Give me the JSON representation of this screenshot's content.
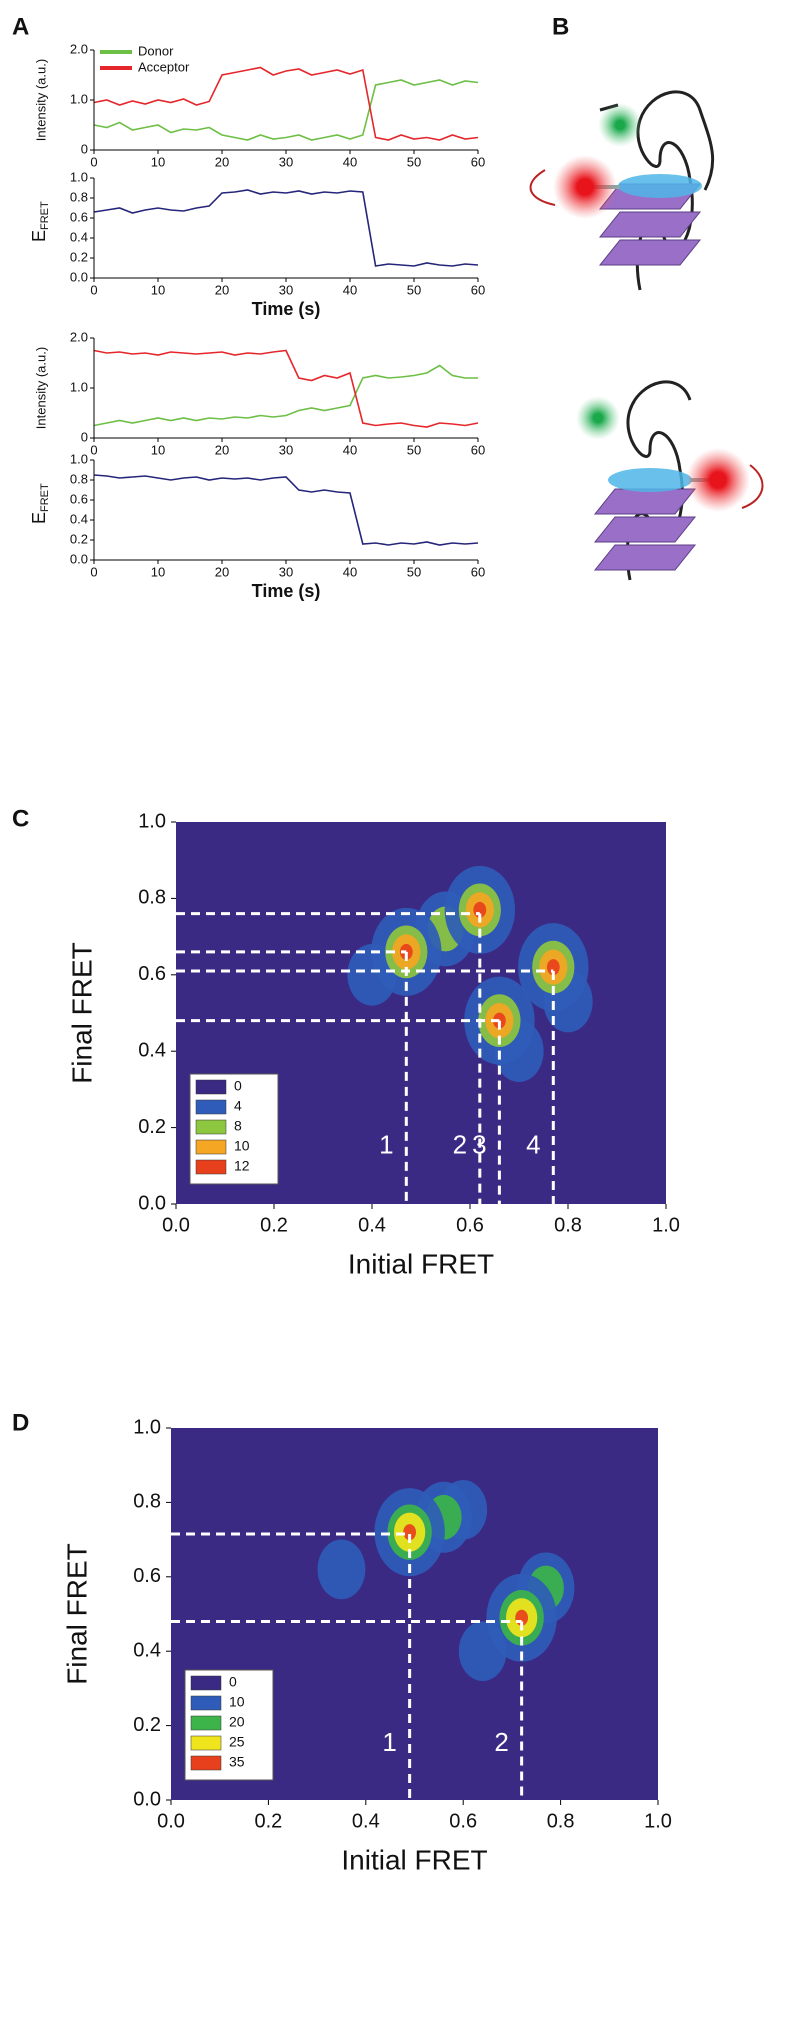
{
  "panel_labels": [
    "A",
    "B",
    "C",
    "D"
  ],
  "chart_data": [
    {
      "type": "line",
      "ylabel": "Intensity (a.u.)",
      "legend": "upper left",
      "x": [
        0,
        2,
        4,
        6,
        8,
        10,
        12,
        14,
        16,
        18,
        20,
        22,
        24,
        26,
        28,
        30,
        32,
        34,
        36,
        38,
        40,
        42,
        44,
        46,
        48,
        50,
        52,
        54,
        56,
        58,
        60
      ],
      "xlim": [
        0,
        60
      ],
      "xticks": [
        0,
        10,
        20,
        30,
        40,
        50,
        60
      ],
      "ylim": [
        0,
        2
      ],
      "yticks": [
        0,
        {
          "value": 1,
          "label": "1.0"
        },
        {
          "value": 2,
          "label": "2.0"
        }
      ],
      "series": [
        {
          "name": "Donor",
          "color": "#6dbf45",
          "values": [
            0.5,
            0.45,
            0.55,
            0.4,
            0.45,
            0.5,
            0.35,
            0.42,
            0.4,
            0.45,
            0.3,
            0.25,
            0.2,
            0.3,
            0.22,
            0.25,
            0.3,
            0.2,
            0.25,
            0.3,
            0.22,
            0.3,
            1.3,
            1.35,
            1.4,
            1.3,
            1.35,
            1.4,
            1.3,
            1.38,
            1.35
          ]
        },
        {
          "name": "Acceptor",
          "color": "#e5262b",
          "values": [
            0.95,
            1.0,
            0.9,
            0.98,
            0.92,
            1.0,
            0.95,
            1.02,
            0.9,
            0.97,
            1.5,
            1.55,
            1.6,
            1.65,
            1.5,
            1.58,
            1.62,
            1.5,
            1.55,
            1.6,
            1.52,
            1.6,
            0.25,
            0.2,
            0.3,
            0.22,
            0.25,
            0.2,
            0.3,
            0.22,
            0.25
          ]
        }
      ]
    },
    {
      "type": "line",
      "ylabel": "E",
      "ylabel_sub": "FRET",
      "xlabel": "Time (s)",
      "x": [
        0,
        2,
        4,
        6,
        8,
        10,
        12,
        14,
        16,
        18,
        20,
        22,
        24,
        26,
        28,
        30,
        32,
        34,
        36,
        38,
        40,
        42,
        44,
        46,
        48,
        50,
        52,
        54,
        56,
        58,
        60
      ],
      "xlim": [
        0,
        60
      ],
      "xticks": [
        0,
        10,
        20,
        30,
        40,
        50,
        60
      ],
      "ylim": [
        0,
        1
      ],
      "yticks": [
        {
          "value": 0,
          "label": "0.0"
        },
        0.2,
        0.4,
        0.6,
        0.8,
        {
          "value": 1,
          "label": "1.0"
        }
      ],
      "series": [
        {
          "color": "#25267a",
          "values": [
            0.66,
            0.68,
            0.7,
            0.65,
            0.68,
            0.7,
            0.68,
            0.67,
            0.7,
            0.72,
            0.85,
            0.86,
            0.88,
            0.84,
            0.86,
            0.85,
            0.87,
            0.84,
            0.86,
            0.85,
            0.87,
            0.86,
            0.12,
            0.14,
            0.13,
            0.12,
            0.15,
            0.13,
            0.12,
            0.14,
            0.13
          ]
        }
      ]
    },
    {
      "type": "line",
      "ylabel": "Intensity (a.u.)",
      "x": [
        0,
        2,
        4,
        6,
        8,
        10,
        12,
        14,
        16,
        18,
        20,
        22,
        24,
        26,
        28,
        30,
        32,
        34,
        36,
        38,
        40,
        42,
        44,
        46,
        48,
        50,
        52,
        54,
        56,
        58,
        60
      ],
      "xlim": [
        0,
        60
      ],
      "xticks": [
        0,
        10,
        20,
        30,
        40,
        50,
        60
      ],
      "ylim": [
        0,
        2
      ],
      "yticks": [
        0,
        {
          "value": 1,
          "label": "1.0"
        },
        {
          "value": 2,
          "label": "2.0"
        }
      ],
      "series": [
        {
          "color": "#6dbf45",
          "values": [
            0.25,
            0.3,
            0.35,
            0.3,
            0.35,
            0.4,
            0.35,
            0.4,
            0.35,
            0.4,
            0.38,
            0.42,
            0.4,
            0.45,
            0.42,
            0.45,
            0.55,
            0.6,
            0.55,
            0.6,
            0.65,
            1.2,
            1.25,
            1.2,
            1.22,
            1.25,
            1.3,
            1.45,
            1.25,
            1.2,
            1.2
          ]
        },
        {
          "color": "#e5262b",
          "values": [
            1.75,
            1.7,
            1.72,
            1.68,
            1.7,
            1.66,
            1.72,
            1.7,
            1.68,
            1.7,
            1.72,
            1.66,
            1.7,
            1.68,
            1.72,
            1.75,
            1.2,
            1.15,
            1.25,
            1.2,
            1.3,
            0.3,
            0.25,
            0.28,
            0.3,
            0.25,
            0.22,
            0.3,
            0.28,
            0.25,
            0.3
          ]
        }
      ]
    },
    {
      "type": "line",
      "ylabel": "E",
      "ylabel_sub": "FRET",
      "xlabel": "Time (s)",
      "x": [
        0,
        2,
        4,
        6,
        8,
        10,
        12,
        14,
        16,
        18,
        20,
        22,
        24,
        26,
        28,
        30,
        32,
        34,
        36,
        38,
        40,
        42,
        44,
        46,
        48,
        50,
        52,
        54,
        56,
        58,
        60
      ],
      "xlim": [
        0,
        60
      ],
      "xticks": [
        0,
        10,
        20,
        30,
        40,
        50,
        60
      ],
      "ylim": [
        0,
        1
      ],
      "yticks": [
        {
          "value": 0,
          "label": "0.0"
        },
        0.2,
        0.4,
        0.6,
        0.8,
        {
          "value": 1,
          "label": "1.0"
        }
      ],
      "series": [
        {
          "color": "#25267a",
          "values": [
            0.85,
            0.84,
            0.82,
            0.83,
            0.84,
            0.82,
            0.8,
            0.82,
            0.83,
            0.8,
            0.82,
            0.81,
            0.82,
            0.8,
            0.82,
            0.83,
            0.7,
            0.68,
            0.7,
            0.68,
            0.67,
            0.16,
            0.17,
            0.15,
            0.17,
            0.16,
            0.18,
            0.15,
            0.17,
            0.16,
            0.17
          ]
        }
      ]
    },
    {
      "type": "heatmap",
      "xlabel": "Initial FRET",
      "ylabel": "Final FRET",
      "xlim": [
        0,
        1
      ],
      "ylim": [
        0,
        1
      ],
      "xticks": [
        {
          "value": 0,
          "label": "0.0"
        },
        0.2,
        0.4,
        0.6,
        0.8,
        {
          "value": 1,
          "label": "1.0"
        }
      ],
      "yticks": [
        {
          "value": 0,
          "label": "0.0"
        },
        0.2,
        0.4,
        0.6,
        0.8,
        {
          "value": 1,
          "label": "1.0"
        }
      ],
      "levels": [
        0,
        4,
        8,
        10,
        12
      ],
      "level_colors": [
        "#3b2a84",
        "#2f5cb8",
        "#8dc63f",
        "#f5a623",
        "#e8401c"
      ],
      "hotspots": [
        {
          "x": 0.4,
          "y": 0.6,
          "level": 4
        },
        {
          "x": 0.7,
          "y": 0.4,
          "level": 4
        },
        {
          "x": 0.8,
          "y": 0.53,
          "level": 4
        },
        {
          "x": 0.55,
          "y": 0.72,
          "level": 8
        },
        {
          "x": 0.47,
          "y": 0.66,
          "level": 12
        },
        {
          "x": 0.62,
          "y": 0.77,
          "level": 12
        },
        {
          "x": 0.66,
          "y": 0.48,
          "level": 12
        },
        {
          "x": 0.77,
          "y": 0.62,
          "level": 12
        }
      ],
      "guides": [
        {
          "x": 0.47,
          "y": 0.66,
          "label": "1"
        },
        {
          "x": 0.62,
          "y": 0.76,
          "label": "2"
        },
        {
          "x": 0.66,
          "y": 0.48,
          "label": "3"
        },
        {
          "x": 0.77,
          "y": 0.61,
          "label": "4"
        }
      ]
    },
    {
      "type": "heatmap",
      "xlabel": "Initial FRET",
      "ylabel": "Final FRET",
      "xlim": [
        0,
        1
      ],
      "ylim": [
        0,
        1
      ],
      "xticks": [
        {
          "value": 0,
          "label": "0.0"
        },
        0.2,
        0.4,
        0.6,
        0.8,
        {
          "value": 1,
          "label": "1.0"
        }
      ],
      "yticks": [
        {
          "value": 0,
          "label": "0.0"
        },
        0.2,
        0.4,
        0.6,
        0.8,
        {
          "value": 1,
          "label": "1.0"
        }
      ],
      "levels": [
        0,
        10,
        20,
        25,
        35
      ],
      "level_colors": [
        "#3b2a84",
        "#2f5cb8",
        "#3cb44a",
        "#f0e51c",
        "#e8401c"
      ],
      "hotspots": [
        {
          "x": 0.35,
          "y": 0.62,
          "level": 10
        },
        {
          "x": 0.6,
          "y": 0.78,
          "level": 10
        },
        {
          "x": 0.64,
          "y": 0.4,
          "level": 10
        },
        {
          "x": 0.77,
          "y": 0.57,
          "level": 20
        },
        {
          "x": 0.56,
          "y": 0.76,
          "level": 20
        },
        {
          "x": 0.49,
          "y": 0.72,
          "level": 35
        },
        {
          "x": 0.72,
          "y": 0.49,
          "level": 35
        }
      ],
      "guides": [
        {
          "x": 0.49,
          "y": 0.715,
          "label": "1"
        },
        {
          "x": 0.72,
          "y": 0.48,
          "label": "2"
        }
      ]
    }
  ]
}
